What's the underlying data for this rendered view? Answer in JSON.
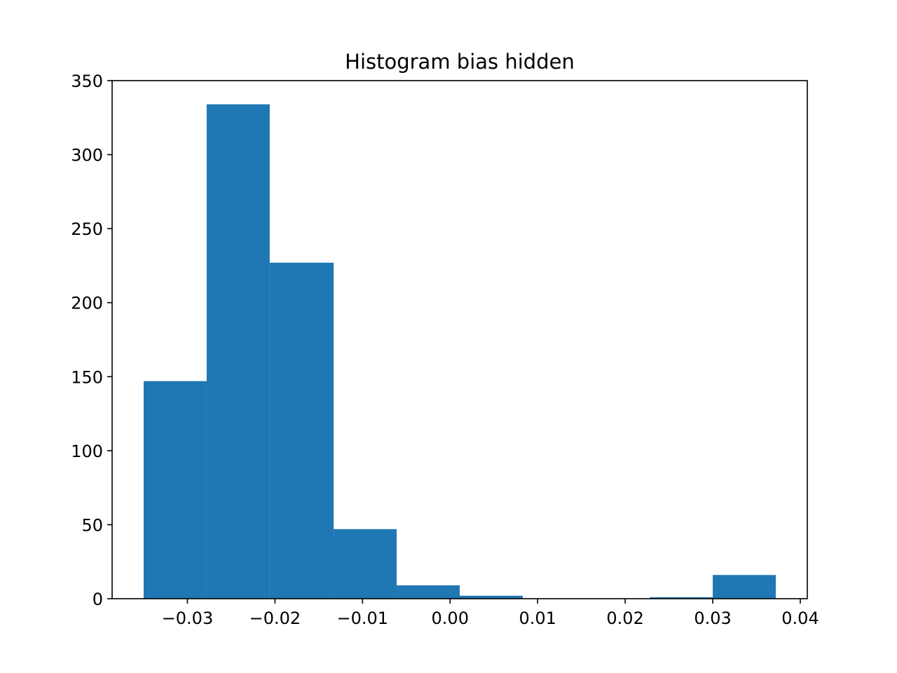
{
  "chart_data": {
    "type": "bar",
    "title": "Histogram bias hidden",
    "xlabel": "",
    "ylabel": "",
    "bin_edges": [
      -0.035,
      -0.0278,
      -0.0206,
      -0.0133,
      -0.0061,
      0.0011,
      0.0083,
      0.0156,
      0.0228,
      0.03,
      0.0372
    ],
    "values": [
      147,
      334,
      227,
      47,
      9,
      2,
      0,
      0,
      1,
      16
    ],
    "xlim": [
      -0.0386,
      0.0408
    ],
    "ylim": [
      0,
      350
    ],
    "xticks": [
      -0.03,
      -0.02,
      -0.01,
      0.0,
      0.01,
      0.02,
      0.03,
      0.04
    ],
    "xtick_labels": [
      "−0.03",
      "−0.02",
      "−0.01",
      "0.00",
      "0.01",
      "0.02",
      "0.03",
      "0.04"
    ],
    "yticks": [
      0,
      50,
      100,
      150,
      200,
      250,
      300,
      350
    ],
    "ytick_labels": [
      "0",
      "50",
      "100",
      "150",
      "200",
      "250",
      "300",
      "350"
    ],
    "grid": false,
    "bar_color": "#1f77b4"
  }
}
